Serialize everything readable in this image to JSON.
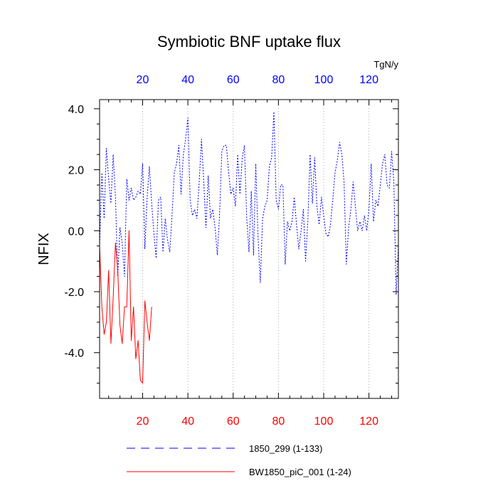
{
  "chart_data": {
    "type": "line",
    "title": "Symbiotic BNF uptake flux",
    "units": "TgN/y",
    "ylabel": "NFIX",
    "xlim": [
      1,
      133
    ],
    "ylim": [
      -5.5,
      4.3
    ],
    "grid": "vertical-dotted",
    "legend": "bottom",
    "x_ticks_bottom": [
      "20",
      "40",
      "60",
      "80",
      "100",
      "120"
    ],
    "x_ticks_top": [
      "20",
      "40",
      "60",
      "80",
      "100",
      "120"
    ],
    "y_ticks": [
      "4.0",
      "2.0",
      "0.0",
      "-2.0",
      "-4.0"
    ],
    "colors": {
      "series_1850": "#0000ff",
      "series_bw": "#ff0000",
      "axis_bottom_labels": "#ff0000",
      "axis_top_labels": "#0000ff",
      "axis": "#000000",
      "grid": "#999999"
    },
    "series": [
      {
        "name": "1850_299 (1-133)",
        "style": "dashed",
        "x_start": 1,
        "values": [
          -0.5,
          1.9,
          0.4,
          2.7,
          1.7,
          0.9,
          2.5,
          1.1,
          -1.5,
          0.1,
          -0.4,
          -1.5,
          1.7,
          1.0,
          1.4,
          1.0,
          1.1,
          1.3,
          1.2,
          2.2,
          -0.6,
          1.1,
          2.1,
          0.9,
          -0.1,
          -0.9,
          1.0,
          1.1,
          -0.7,
          0.4,
          -0.3,
          -0.7,
          0.5,
          1.9,
          2.2,
          2.8,
          1.2,
          2.5,
          3.0,
          3.7,
          1.0,
          0.5,
          0.7,
          0.4,
          1.6,
          3.0,
          1.6,
          0.1,
          1.8,
          0.4,
          0.7,
          0.1,
          -0.8,
          0.5,
          2.6,
          2.8,
          2.8,
          1.9,
          1.2,
          1.4,
          0.8,
          2.5,
          1.2,
          2.4,
          2.8,
          0.4,
          -0.7,
          1.3,
          -0.8,
          2.2,
          -0.2,
          -1.7,
          0.4,
          0.8,
          1.0,
          2.1,
          2.4,
          3.9,
          1.0,
          0.7,
          1.5,
          1.5,
          -1.1,
          0.3,
          0.0,
          0.3,
          1.1,
          0.2,
          -0.6,
          0.0,
          0.7,
          -1.0,
          0.3,
          2.5,
          0.9,
          2.4,
          0.8,
          0.2,
          1.1,
          0.5,
          -0.1,
          -0.2,
          0.2,
          1.0,
          1.9,
          2.3,
          2.9,
          2.5,
          1.6,
          -1.1,
          0.1,
          0.7,
          1.6,
          0.8,
          0.0,
          0.3,
          0.0,
          0.5,
          0.0,
          0.7,
          2.2,
          0.3,
          1.0,
          0.8,
          1.5,
          2.2,
          2.5,
          1.5,
          1.4,
          2.6,
          1.6,
          -2.1,
          -0.5
        ]
      },
      {
        "name": "BW1850_piC_001 (1-24)",
        "style": "solid",
        "x_start": 1,
        "values": [
          -0.5,
          -2.5,
          -3.4,
          -3.0,
          -1.3,
          -3.7,
          -2.2,
          -0.4,
          -1.3,
          -3.1,
          -3.7,
          -2.5,
          -2.5,
          0.0,
          -3.6,
          -2.5,
          -4.2,
          -3.6,
          -4.9,
          -5.0,
          -2.3,
          -3.0,
          -3.6,
          -2.5
        ]
      }
    ]
  }
}
